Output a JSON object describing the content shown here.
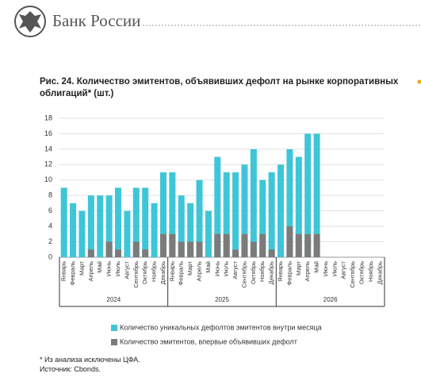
{
  "header": {
    "brand": "Банк России"
  },
  "chart_data": {
    "type": "bar",
    "title": "Рис. 24. Количество эмитентов, объявивших дефолт на рынке корпоративных облигаций* (шт.)",
    "categories": [
      "Январь",
      "Февраль",
      "Март",
      "Апрель",
      "Май",
      "Июнь",
      "Июль",
      "Август",
      "Сентябрь",
      "Октябрь",
      "Ноябрь",
      "Декабрь",
      "Январь",
      "Февраль",
      "Март",
      "Апрель",
      "Май",
      "Июнь",
      "Июль",
      "Август",
      "Сентябрь",
      "Октябрь",
      "Ноябрь",
      "Декабрь",
      "Январь",
      "Февраль",
      "Март",
      "Апрель",
      "Май",
      "Июнь",
      "Июль",
      "Август",
      "Сентябрь",
      "Октябрь",
      "Ноябрь",
      "Декабрь"
    ],
    "groups": [
      "2024",
      "2025",
      "2026"
    ],
    "series": [
      {
        "name": "Количество уникальных дефолтов эмитентов внутри месяца",
        "color": "#3ec6d8",
        "values": [
          9,
          7,
          6,
          8,
          8,
          8,
          9,
          6,
          9,
          9,
          7,
          11,
          11,
          8,
          7,
          10,
          6,
          13,
          11,
          11,
          12,
          14,
          10,
          11,
          12,
          14,
          13,
          16,
          16,
          null,
          null,
          null,
          null,
          null,
          null,
          null
        ]
      },
      {
        "name": "Количество эмитентов, впервые объявивших дефолт",
        "color": "#7b7b7b",
        "values": [
          0,
          0,
          0,
          1,
          0,
          2,
          1,
          0,
          2,
          1,
          0,
          3,
          3,
          2,
          2,
          2,
          0,
          3,
          3,
          1,
          3,
          2,
          3,
          1,
          0,
          4,
          3,
          3,
          3,
          null,
          null,
          null,
          null,
          null,
          null,
          null
        ]
      }
    ],
    "ylim": [
      0,
      18
    ],
    "yticks": [
      0,
      2,
      4,
      6,
      8,
      10,
      12,
      14,
      16,
      18
    ],
    "grid": true
  },
  "notes": [
    "* Из анализа исключены ЦФА.",
    "Источник: Cbonds."
  ]
}
